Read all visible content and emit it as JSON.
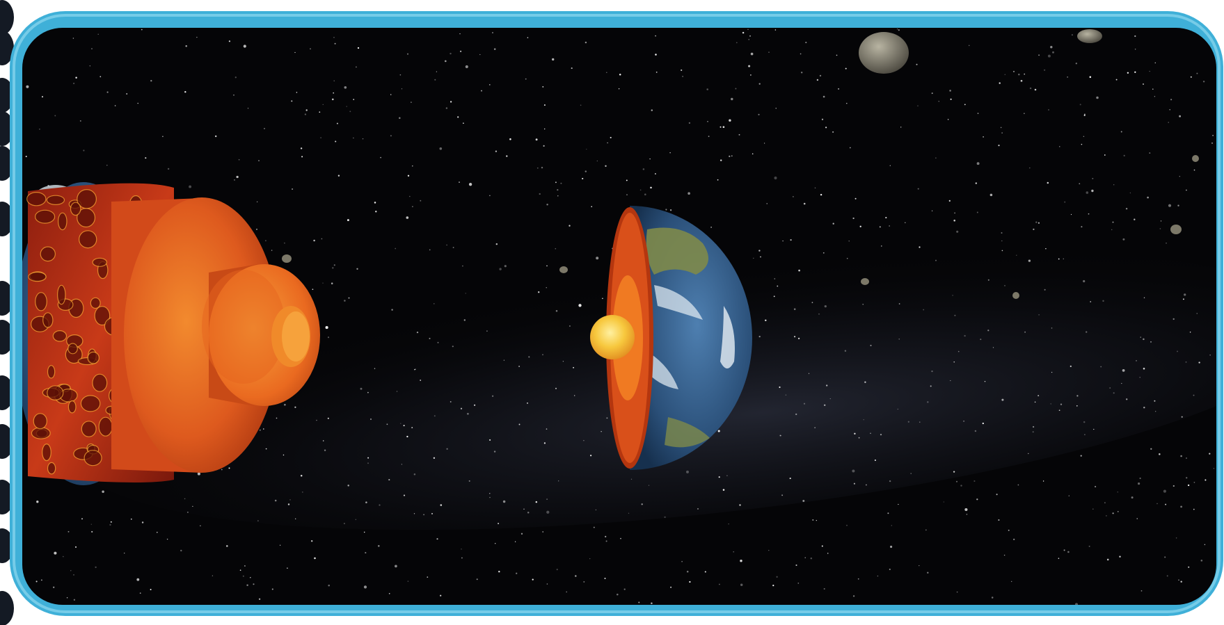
{
  "scene": {
    "subject": "earth-interior-layers",
    "frame_color": "#3fb0d8",
    "frame_highlight": "#8fd8f0",
    "space_color": "#050507",
    "colors": {
      "crust_lava": "#c2361a",
      "mantle": "#e0561d",
      "outer_core": "#f07a22",
      "inner_core": "#f6c43c",
      "ocean": "#2f5a86",
      "land": "#7e8a4a",
      "clouds": "#e6eef4",
      "binding": "#141a24"
    }
  }
}
